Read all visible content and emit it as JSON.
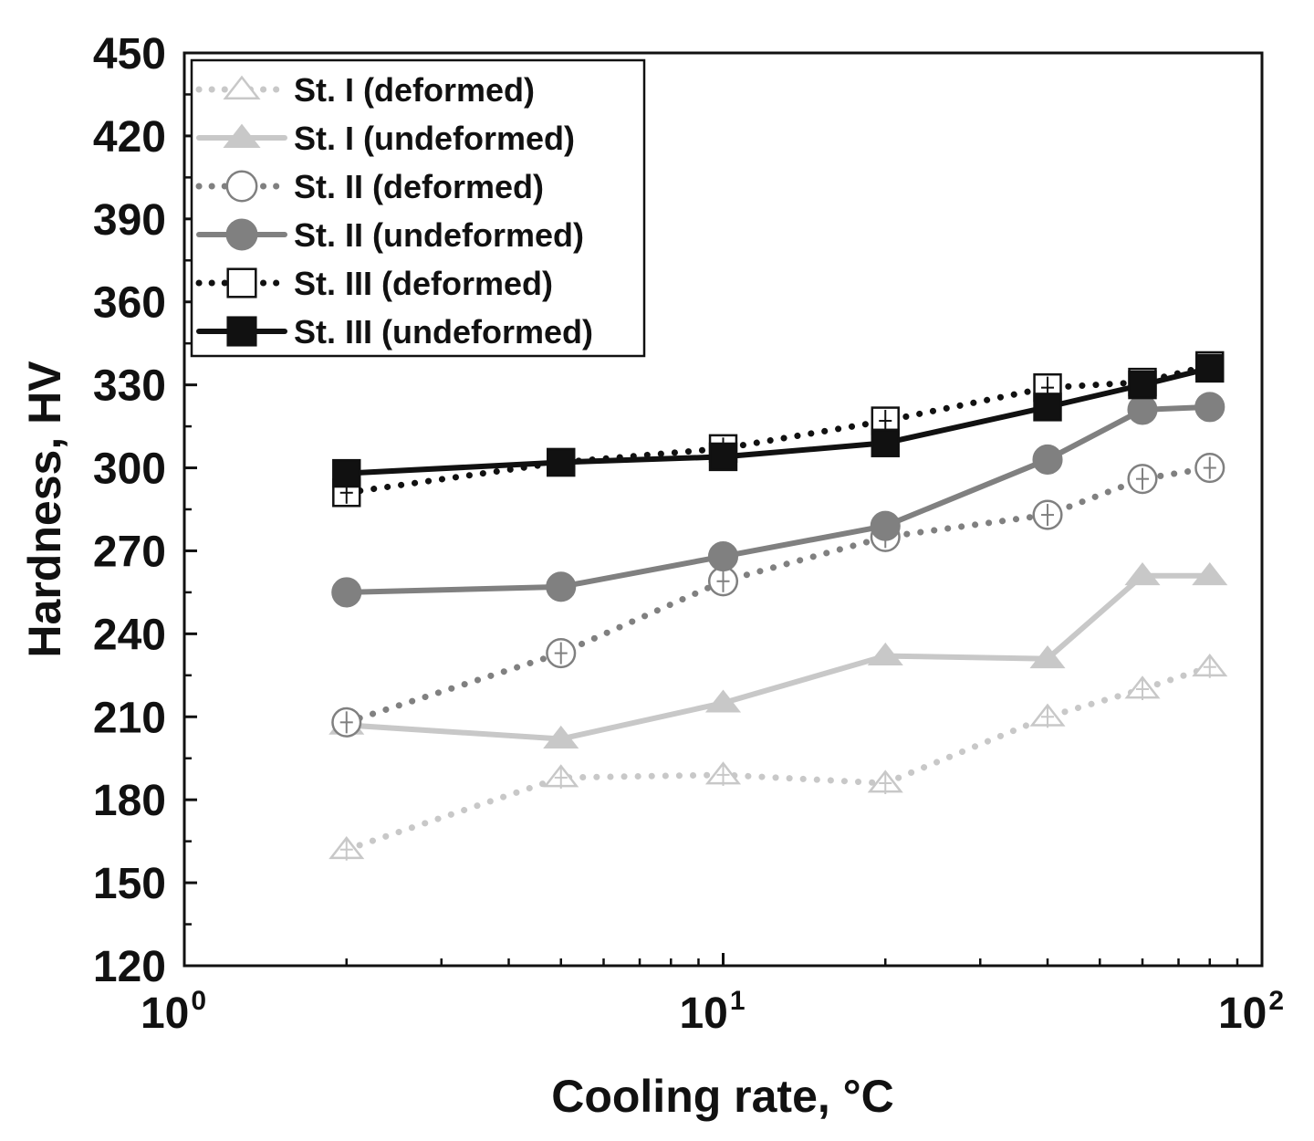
{
  "chart_data": {
    "type": "line",
    "title": "",
    "xlabel": "Cooling rate, °C",
    "ylabel": "Hardness, HV",
    "xscale": "log",
    "xlim": [
      1,
      100
    ],
    "ylim": [
      120,
      450
    ],
    "yticks": [
      120,
      150,
      180,
      210,
      240,
      270,
      300,
      330,
      360,
      390,
      420,
      450
    ],
    "yticks_labels": [
      "120",
      "150",
      "180",
      "210",
      "240",
      "270",
      "300",
      "330",
      "360",
      "390",
      "420",
      "450"
    ],
    "xticks": [
      {
        "value": 1,
        "base": "10",
        "exp": "0"
      },
      {
        "value": 10,
        "base": "10",
        "exp": "1"
      },
      {
        "value": 100,
        "base": "10",
        "exp": "2"
      }
    ],
    "legend_position": "top-left",
    "x": [
      2,
      5,
      10,
      20,
      40,
      60,
      80
    ],
    "series": [
      {
        "name": "St. I (deformed)",
        "values": [
          162,
          188,
          189,
          186,
          210,
          220,
          228
        ],
        "color": "#c8c8c8",
        "marker": "triangle",
        "filled": false,
        "dashed": true
      },
      {
        "name": "St. I (undeformed)",
        "values": [
          207,
          202,
          215,
          232,
          231,
          261,
          261
        ],
        "color": "#c8c8c8",
        "marker": "triangle",
        "filled": true,
        "dashed": false
      },
      {
        "name": "St. II (deformed)",
        "values": [
          208,
          233,
          259,
          275,
          283,
          296,
          300
        ],
        "color": "#808080",
        "marker": "circle",
        "filled": false,
        "dashed": true
      },
      {
        "name": "St. II (undeformed)",
        "values": [
          255,
          257,
          268,
          279,
          303,
          321,
          322
        ],
        "color": "#808080",
        "marker": "circle",
        "filled": true,
        "dashed": false
      },
      {
        "name": "St. III (deformed)",
        "values": [
          291,
          302,
          307,
          317,
          329,
          331,
          337
        ],
        "color": "#111111",
        "marker": "square",
        "filled": false,
        "dashed": true
      },
      {
        "name": "St. III (undeformed)",
        "values": [
          298,
          302,
          304,
          309,
          322,
          330,
          336
        ],
        "color": "#111111",
        "marker": "square",
        "filled": true,
        "dashed": false
      }
    ]
  }
}
